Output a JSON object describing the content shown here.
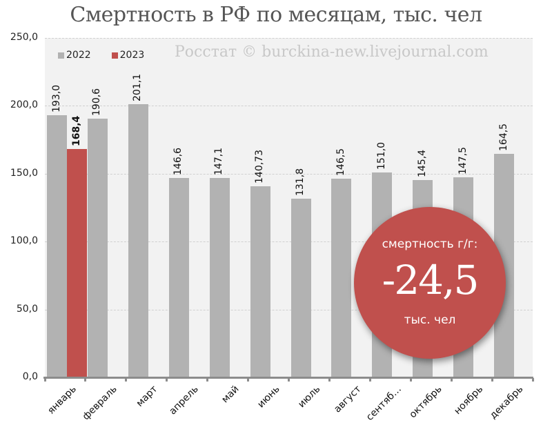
{
  "title": "Смертность в РФ по месяцам, тыс. чел",
  "watermark": "Росстат © burckina-new.livejournal.com",
  "legend": [
    {
      "label": "2022",
      "color": "#b2b2b2"
    },
    {
      "label": "2023",
      "color": "#c0504d"
    }
  ],
  "y_ticks": [
    "0,0",
    "50,0",
    "100,0",
    "150,0",
    "200,0",
    "250,0"
  ],
  "badge": {
    "top": "смертность г/г:",
    "value": "-24,5",
    "bottom": "тыс. чел"
  },
  "chart_data": {
    "type": "bar",
    "title": "Смертность в РФ по месяцам, тыс. чел",
    "xlabel": "",
    "ylabel": "",
    "ylim": [
      0,
      250
    ],
    "grid": true,
    "legend_position": "top-left",
    "categories": [
      "январь",
      "февраль",
      "март",
      "апрель",
      "май",
      "июнь",
      "июль",
      "август",
      "сентяб…",
      "октябрь",
      "ноябрь",
      "декабрь"
    ],
    "series": [
      {
        "name": "2022",
        "color": "#b2b2b2",
        "values": [
          193.0,
          190.6,
          201.1,
          146.6,
          147.1,
          140.73,
          131.8,
          146.5,
          151.0,
          145.4,
          147.5,
          164.5
        ],
        "labels": [
          "193,0",
          "190,6",
          "201,1",
          "146,6",
          "147,1",
          "140,73",
          "131,8",
          "146,5",
          "151,0",
          "145,4",
          "147,5",
          "164,5"
        ]
      },
      {
        "name": "2023",
        "color": "#c0504d",
        "values": [
          168.4,
          null,
          null,
          null,
          null,
          null,
          null,
          null,
          null,
          null,
          null,
          null
        ],
        "labels": [
          "168,4",
          "",
          "",
          "",
          "",
          "",
          "",
          "",
          "",
          "",
          "",
          ""
        ]
      }
    ],
    "annotations": [
      {
        "text": "смертность г/г: -24,5 тыс. чел"
      },
      {
        "text": "Росстат © burckina-new.livejournal.com"
      }
    ]
  }
}
